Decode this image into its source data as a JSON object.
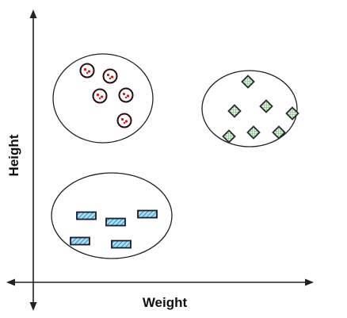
{
  "axes": {
    "x_label": "Weight",
    "y_label": "Height"
  },
  "clusters": [
    {
      "id": "cluster-circles",
      "shape": "circle",
      "fill": "#ffffff",
      "stroke": "#2b0a0a",
      "accent": "#e01010"
    },
    {
      "id": "cluster-diamonds",
      "shape": "diamond",
      "fill": "#d8f0d8",
      "stroke": "#2a2a2a",
      "accent": "#6fbf6f"
    },
    {
      "id": "cluster-rectangles",
      "shape": "rectangle",
      "fill": "#7ec8e3",
      "stroke": "#1a1a2e",
      "accent": "#3a9ec9"
    }
  ]
}
